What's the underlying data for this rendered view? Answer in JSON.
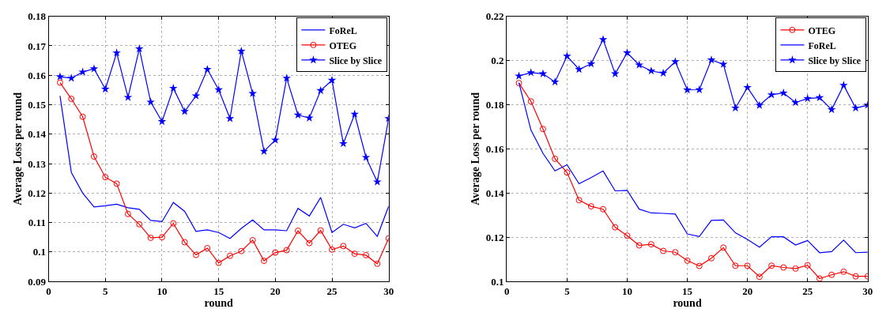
{
  "chart_data": [
    {
      "type": "line",
      "xlabel": "round",
      "ylabel": "Average Loss per round",
      "x": [
        1,
        2,
        3,
        4,
        5,
        6,
        7,
        8,
        9,
        10,
        11,
        12,
        13,
        14,
        15,
        16,
        17,
        18,
        19,
        20,
        21,
        22,
        23,
        24,
        25,
        26,
        27,
        28,
        29,
        30
      ],
      "xlim": [
        0,
        30
      ],
      "xticks": [
        0,
        5,
        10,
        15,
        20,
        25,
        30
      ],
      "ylim": [
        0.09,
        0.18
      ],
      "yticks": [
        0.09,
        0.1,
        0.11,
        0.12,
        0.13,
        0.14,
        0.15,
        0.16,
        0.17,
        0.18
      ],
      "grid": true,
      "legend": "top right",
      "series": [
        {
          "name": "FoReL",
          "color": "#0000ff",
          "marker": "none",
          "values": [
            0.153,
            0.127,
            0.12,
            0.1153,
            0.1157,
            0.1162,
            0.115,
            0.1145,
            0.1107,
            0.1103,
            0.1168,
            0.1138,
            0.107,
            0.1075,
            0.1066,
            0.1046,
            0.108,
            0.1109,
            0.1075,
            0.1075,
            0.1072,
            0.1148,
            0.1122,
            0.1185,
            0.1066,
            0.1094,
            0.1082,
            0.1097,
            0.1053,
            0.1155
          ]
        },
        {
          "name": "OTEG",
          "color": "#ff0000",
          "marker": "circle",
          "values": [
            0.1575,
            0.152,
            0.1459,
            0.1324,
            0.1254,
            0.1232,
            0.1129,
            0.1094,
            0.1048,
            0.105,
            0.1097,
            0.1033,
            0.099,
            0.1013,
            0.0963,
            0.0987,
            0.1003,
            0.104,
            0.097,
            0.0998,
            0.1006,
            0.1072,
            0.103,
            0.1073,
            0.1008,
            0.102,
            0.0994,
            0.0989,
            0.096,
            0.1046
          ]
        },
        {
          "name": "Slice by Slice",
          "color": "#0000ff",
          "marker": "star",
          "values": [
            0.1595,
            0.159,
            0.1611,
            0.1622,
            0.1553,
            0.1676,
            0.1525,
            0.169,
            0.1509,
            0.1443,
            0.1556,
            0.1477,
            0.153,
            0.162,
            0.1551,
            0.1453,
            0.1682,
            0.1538,
            0.1342,
            0.138,
            0.159,
            0.1465,
            0.1455,
            0.1548,
            0.1583,
            0.1368,
            0.1468,
            0.1321,
            0.1238,
            0.1453
          ]
        }
      ]
    },
    {
      "type": "line",
      "xlabel": "round",
      "ylabel": "Average Loss per round",
      "x": [
        1,
        2,
        3,
        4,
        5,
        6,
        7,
        8,
        9,
        10,
        11,
        12,
        13,
        14,
        15,
        16,
        17,
        18,
        19,
        20,
        21,
        22,
        23,
        24,
        25,
        26,
        27,
        28,
        29,
        30
      ],
      "xlim": [
        0,
        30
      ],
      "xticks": [
        0,
        5,
        10,
        15,
        20,
        25,
        30
      ],
      "ylim": [
        0.1,
        0.22
      ],
      "yticks": [
        0.1,
        0.12,
        0.14,
        0.16,
        0.18,
        0.2,
        0.22
      ],
      "grid": true,
      "legend": "top right",
      "series": [
        {
          "name": "OTEG",
          "color": "#ff0000",
          "marker": "circle",
          "values": [
            0.1898,
            0.1815,
            0.169,
            0.1555,
            0.1493,
            0.1368,
            0.134,
            0.1327,
            0.1245,
            0.1207,
            0.1163,
            0.1168,
            0.1138,
            0.1132,
            0.1094,
            0.107,
            0.1105,
            0.1153,
            0.1071,
            0.1071,
            0.1021,
            0.1071,
            0.1063,
            0.1058,
            0.1073,
            0.1013,
            0.103,
            0.1044,
            0.1023,
            0.1023
          ]
        },
        {
          "name": "FoReL",
          "color": "#0000ff",
          "marker": "none",
          "values": [
            0.19,
            0.1685,
            0.158,
            0.15,
            0.1528,
            0.1442,
            0.147,
            0.15,
            0.141,
            0.1412,
            0.1327,
            0.131,
            0.1308,
            0.1305,
            0.1215,
            0.1203,
            0.1276,
            0.1278,
            0.122,
            0.119,
            0.1155,
            0.1202,
            0.1202,
            0.1165,
            0.1185,
            0.113,
            0.1135,
            0.1187,
            0.113,
            0.1132
          ]
        },
        {
          "name": "Slice by Slice",
          "color": "#0000ff",
          "marker": "star",
          "values": [
            0.193,
            0.1945,
            0.194,
            0.1903,
            0.202,
            0.196,
            0.1985,
            0.2095,
            0.194,
            0.2035,
            0.198,
            0.1953,
            0.1943,
            0.1995,
            0.1867,
            0.1868,
            0.2003,
            0.1983,
            0.1785,
            0.1878,
            0.1797,
            0.1845,
            0.1853,
            0.181,
            0.1828,
            0.1832,
            0.1778,
            0.1888,
            0.1785,
            0.1798
          ]
        }
      ]
    }
  ]
}
